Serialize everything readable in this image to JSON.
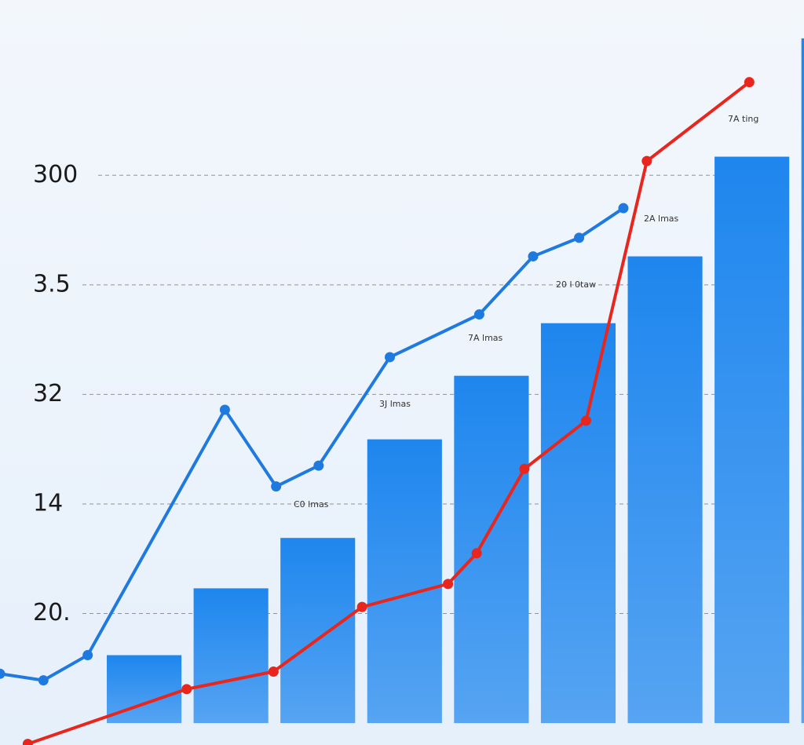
{
  "chart_data": {
    "type": "bar",
    "categories": [
      null,
      null,
      null,
      null,
      null,
      null,
      null,
      null,
      null
    ],
    "values": [
      0.62,
      1.23,
      1.69,
      2.59,
      3.17,
      3.65,
      4.26,
      5.17,
      6.25
    ],
    "color": "#1e86ee",
    "xlim": [
      -1.16,
      8.1
    ],
    "ylim": [
      -0.2,
      6.6
    ],
    "yticks": [
      {
        "value": 1,
        "label": "20."
      },
      {
        "value": 2,
        "label": "14"
      },
      {
        "value": 3,
        "label": "32"
      },
      {
        "value": 4,
        "label": "3.5"
      },
      {
        "value": 5,
        "label": "300"
      }
    ],
    "grid": true,
    "lines": [
      {
        "color": "#1f7ae0",
        "x": [
          -1.16,
          -0.66,
          -0.15,
          1.43,
          2.02,
          2.51,
          3.33,
          4.36,
          4.98,
          5.51,
          6.02
        ],
        "values": [
          0.45,
          0.39,
          0.62,
          2.86,
          2.16,
          2.35,
          3.34,
          3.73,
          4.26,
          4.43,
          4.7
        ]
      },
      {
        "color": "#e8261e",
        "x": [
          -0.84,
          0.99,
          1.99,
          3.01,
          4.0,
          4.33,
          4.88,
          5.59,
          6.29,
          7.47
        ],
        "values": [
          -0.19,
          0.31,
          0.47,
          1.06,
          1.27,
          1.55,
          2.32,
          2.76,
          5.13,
          5.85
        ]
      }
    ],
    "annotations": [
      "7A ting",
      "2A lmas",
      "20 l 0taw",
      "7A lmas",
      "3J lmas",
      "C0 lmas"
    ]
  }
}
